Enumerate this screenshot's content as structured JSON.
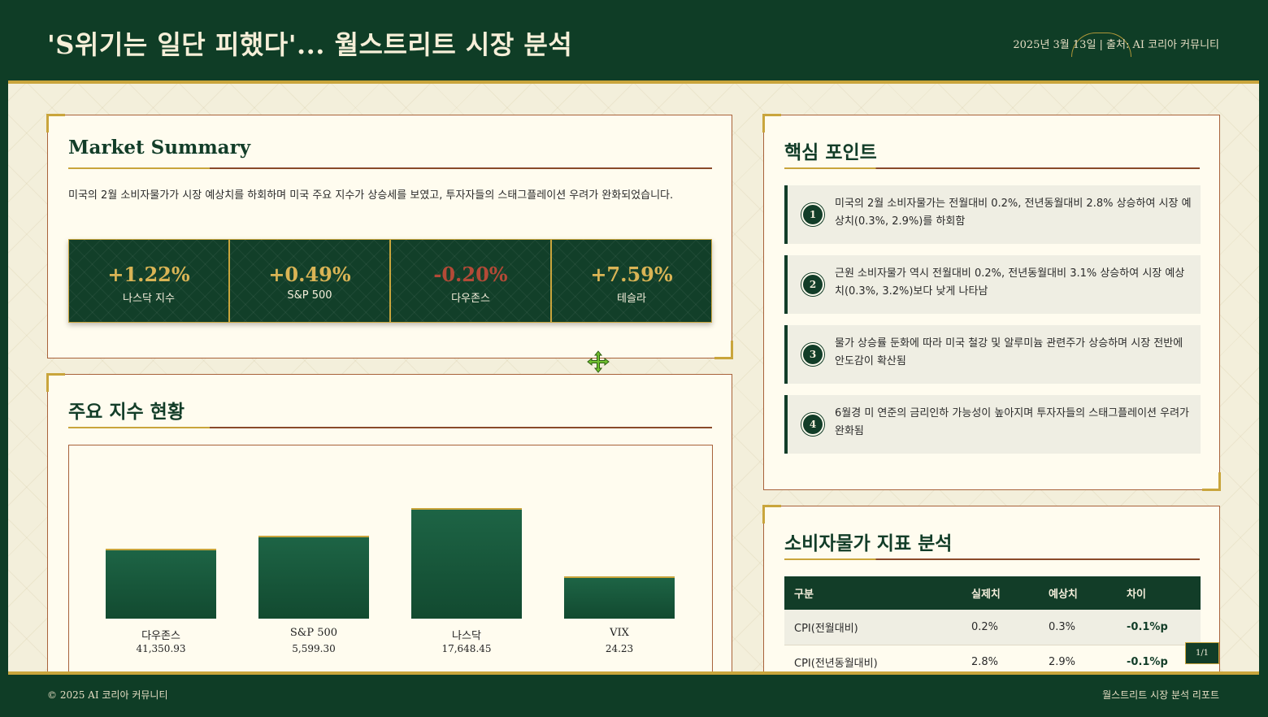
{
  "header": {
    "title": "'S위기는 일단 피했다'... 월스트리트 시장 분석",
    "meta": "2025년 3월 13일 | 출처: AI 코리아 커뮤니티"
  },
  "summary": {
    "title": "Market Summary",
    "text": "미국의 2월 소비자물가가 시장 예상치를 하회하며 미국 주요 지수가 상승세를 보였고, 투자자들의 스태그플레이션 우려가 완화되었습니다.",
    "stats": [
      {
        "value": "+1.22%",
        "label": "나스닥 지수"
      },
      {
        "value": "+0.49%",
        "label": "S&P 500"
      },
      {
        "value": "-0.20%",
        "label": "다우존스"
      },
      {
        "value": "+7.59%",
        "label": "테슬라"
      }
    ]
  },
  "indices": {
    "title": "주요 지수 현황"
  },
  "chart_data": {
    "type": "bar",
    "categories": [
      "다우존스",
      "S&P 500",
      "나스닥",
      "VIX"
    ],
    "values": [
      41350.93,
      5599.3,
      17648.45,
      24.23
    ],
    "value_labels": [
      "41,350.93",
      "5,599.30",
      "17,648.45",
      "24.23"
    ],
    "title": "",
    "xlabel": "",
    "ylabel": "",
    "display_levels": [
      0.63,
      0.75,
      1.0,
      0.38
    ]
  },
  "key_points": {
    "title": "핵심 포인트",
    "items": [
      {
        "num": "1",
        "text": "미국의 2월 소비자물가는 전월대비 0.2%, 전년동월대비 2.8% 상승하여 시장 예상치(0.3%, 2.9%)를 하회함"
      },
      {
        "num": "2",
        "text": "근원 소비자물가 역시 전월대비 0.2%, 전년동월대비 3.1% 상승하여 시장 예상치(0.3%, 3.2%)보다 낮게 나타남"
      },
      {
        "num": "3",
        "text": "물가 상승률 둔화에 따라 미국 철강 및 알루미늄 관련주가 상승하며 시장 전반에 안도감이 확산됨"
      },
      {
        "num": "4",
        "text": "6월경 미 연준의 금리인하 가능성이 높아지며 투자자들의 스태그플레이션 우려가 완화됨"
      }
    ]
  },
  "cpi": {
    "title": "소비자물가 지표 분석",
    "headers": [
      "구분",
      "실제치",
      "예상치",
      "차이"
    ],
    "rows": [
      [
        "CPI(전월대비)",
        "0.2%",
        "0.3%",
        "-0.1%p"
      ],
      [
        "CPI(전년동월대비)",
        "2.8%",
        "2.9%",
        "-0.1%p"
      ]
    ]
  },
  "page_badge": "1/1",
  "footer": {
    "left": "© 2025 AI 코리아 커뮤니티",
    "right": "월스트리트 시장 분석 리포트"
  },
  "colors": {
    "primary": "#0f3d26",
    "gold": "#c9a53c",
    "negative": "#b34a37",
    "cream": "#fffcef"
  }
}
